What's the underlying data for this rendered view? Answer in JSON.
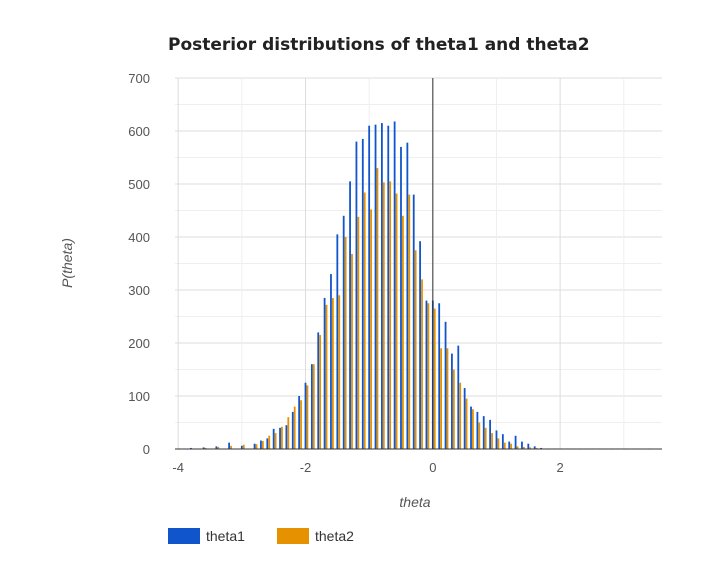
{
  "chart_data": {
    "type": "bar",
    "title": "Posterior distributions of theta1 and theta2",
    "xlabel": "theta",
    "ylabel": "P(theta)",
    "xlim": [
      -4.05,
      3.6
    ],
    "ylim": [
      0,
      700
    ],
    "x_ticks": [
      -4,
      -2,
      0,
      2
    ],
    "x_tick_labels": [
      "-4",
      "-2",
      "0",
      "2"
    ],
    "y_ticks": [
      0,
      100,
      200,
      300,
      400,
      500,
      600,
      700
    ],
    "y_tick_labels": [
      "0",
      "100",
      "200",
      "300",
      "400",
      "500",
      "600",
      "700"
    ],
    "grid": true,
    "legend_position": "bottom-left",
    "zero_line_x": 0,
    "series": [
      {
        "name": "theta1",
        "color": "#1155cc",
        "x": [
          -4.0,
          -3.8,
          -3.6,
          -3.4,
          -3.2,
          -3.0,
          -2.8,
          -2.7,
          -2.6,
          -2.5,
          -2.4,
          -2.3,
          -2.2,
          -2.1,
          -2.0,
          -1.9,
          -1.8,
          -1.7,
          -1.6,
          -1.5,
          -1.4,
          -1.3,
          -1.2,
          -1.1,
          -1.0,
          -0.9,
          -0.8,
          -0.7,
          -0.6,
          -0.5,
          -0.4,
          -0.3,
          -0.2,
          -0.1,
          0.0,
          0.1,
          0.2,
          0.3,
          0.4,
          0.5,
          0.6,
          0.7,
          0.8,
          0.9,
          1.0,
          1.1,
          1.2,
          1.3,
          1.4,
          1.5,
          1.6,
          1.7,
          1.8,
          1.9,
          2.0,
          2.1,
          2.2,
          2.3,
          2.4,
          2.5,
          2.6,
          2.7,
          2.8,
          2.9,
          3.0,
          3.2,
          3.4
        ],
        "values": [
          1,
          2,
          3,
          5,
          12,
          6,
          10,
          16,
          20,
          38,
          40,
          45,
          70,
          100,
          125,
          160,
          220,
          285,
          330,
          405,
          440,
          505,
          580,
          585,
          610,
          612,
          615,
          610,
          618,
          570,
          578,
          480,
          392,
          280,
          280,
          275,
          240,
          180,
          195,
          115,
          80,
          70,
          62,
          55,
          35,
          28,
          14,
          25,
          14,
          10,
          5,
          2,
          1,
          1,
          1,
          1,
          1,
          1,
          1,
          1,
          1,
          1,
          1,
          1,
          1,
          1,
          1
        ]
      },
      {
        "name": "theta2",
        "color": "#e69100",
        "x": [
          -3.97,
          -3.77,
          -3.57,
          -3.37,
          -3.17,
          -2.97,
          -2.77,
          -2.67,
          -2.57,
          -2.47,
          -2.37,
          -2.27,
          -2.17,
          -2.07,
          -1.97,
          -1.87,
          -1.77,
          -1.67,
          -1.57,
          -1.47,
          -1.37,
          -1.27,
          -1.17,
          -1.07,
          -0.97,
          -0.87,
          -0.77,
          -0.67,
          -0.57,
          -0.47,
          -0.37,
          -0.27,
          -0.17,
          -0.07,
          0.03,
          0.13,
          0.23,
          0.33,
          0.43,
          0.53,
          0.63,
          0.73,
          0.83,
          0.93,
          1.03,
          1.13,
          1.23,
          1.33,
          1.43,
          1.53,
          1.63,
          1.73,
          1.83,
          1.93,
          2.03,
          2.13,
          2.23,
          2.33,
          2.43,
          2.53,
          2.63,
          2.73,
          2.83,
          2.93,
          3.03,
          3.23,
          3.43
        ],
        "values": [
          1,
          1,
          2,
          4,
          6,
          8,
          9,
          15,
          25,
          30,
          42,
          60,
          80,
          92,
          120,
          160,
          215,
          272,
          285,
          290,
          400,
          368,
          438,
          484,
          452,
          530,
          503,
          505,
          482,
          440,
          480,
          375,
          320,
          275,
          265,
          190,
          190,
          150,
          125,
          95,
          75,
          50,
          40,
          30,
          20,
          12,
          10,
          5,
          4,
          3,
          2,
          1,
          1,
          1,
          1,
          1,
          1,
          1,
          1,
          1,
          1,
          1,
          1,
          1,
          1,
          1,
          1
        ]
      }
    ]
  }
}
